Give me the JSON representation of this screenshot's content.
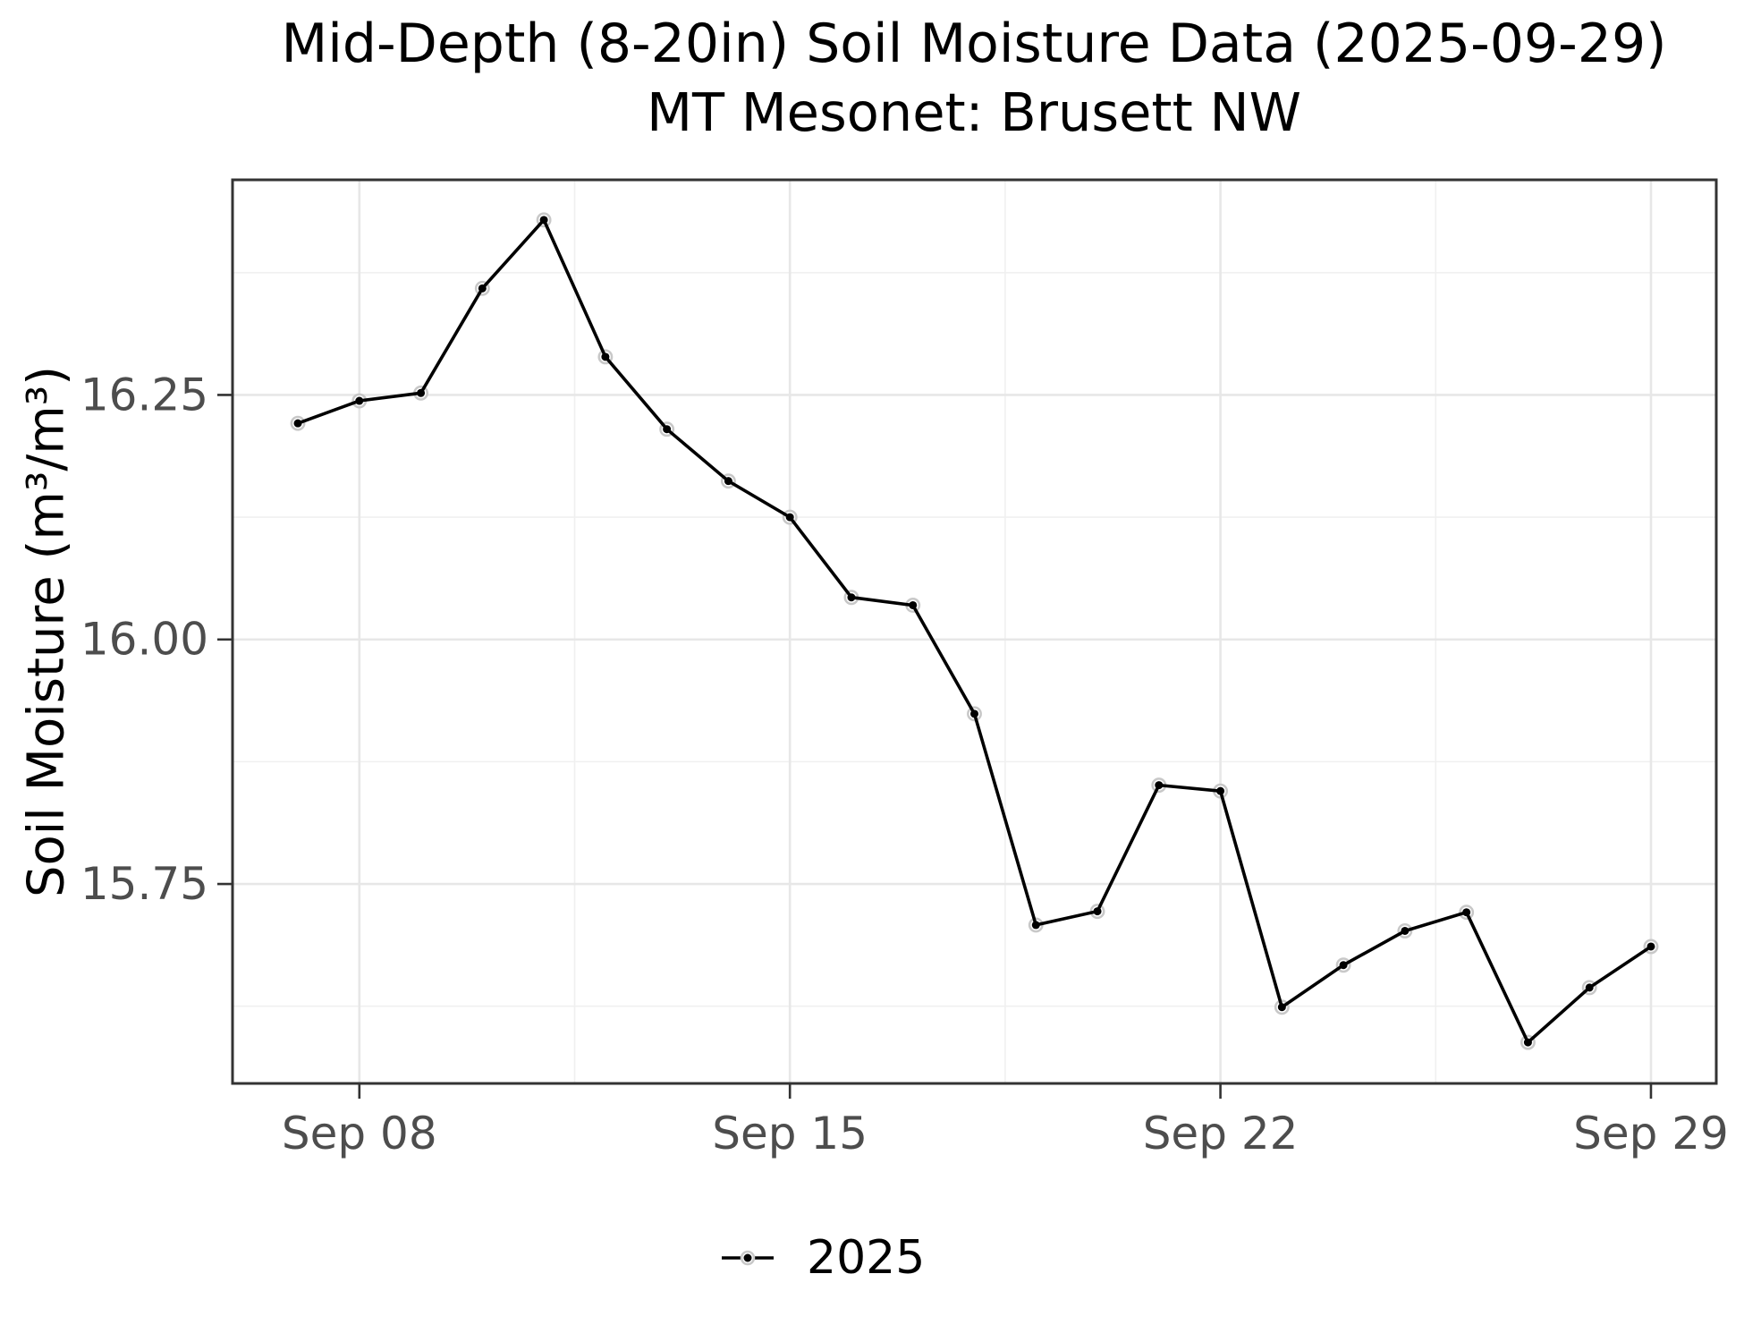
{
  "chart_data": {
    "type": "line",
    "title": "Mid-Depth (8-20in) Soil Moisture Data (2025-09-29)",
    "subtitle": "MT Mesonet: Brusett NW",
    "xlabel": "",
    "ylabel": "Soil Moisture (m³/m³)",
    "grid": "major+minor",
    "legend": {
      "position": "bottom",
      "entries": [
        {
          "label": "2025",
          "color": "#000000"
        }
      ]
    },
    "x": [
      "Sep 07",
      "Sep 08",
      "Sep 09",
      "Sep 10",
      "Sep 11",
      "Sep 12",
      "Sep 13",
      "Sep 14",
      "Sep 15",
      "Sep 16",
      "Sep 17",
      "Sep 18",
      "Sep 19",
      "Sep 20",
      "Sep 21",
      "Sep 22",
      "Sep 23",
      "Sep 24",
      "Sep 25",
      "Sep 26",
      "Sep 27",
      "Sep 28",
      "Sep 29"
    ],
    "x_days": [
      7,
      8,
      9,
      10,
      11,
      12,
      13,
      14,
      15,
      16,
      17,
      18,
      19,
      20,
      21,
      22,
      23,
      24,
      25,
      26,
      27,
      28,
      29
    ],
    "series": [
      {
        "name": "2025",
        "color": "#000000",
        "values": [
          16.221,
          16.244,
          16.252,
          16.359,
          16.429,
          16.289,
          16.215,
          16.162,
          16.125,
          16.043,
          16.035,
          15.924,
          15.708,
          15.722,
          15.851,
          15.845,
          15.624,
          15.667,
          15.702,
          15.721,
          15.588,
          15.644,
          15.686
        ]
      }
    ],
    "axes": {
      "x_major_ticks": [
        {
          "label": "Sep 08",
          "day": 8
        },
        {
          "label": "Sep 15",
          "day": 15
        },
        {
          "label": "Sep 22",
          "day": 22
        },
        {
          "label": "Sep 29",
          "day": 29
        }
      ],
      "x_minor_days": [
        11.5,
        18.5,
        25.5
      ],
      "y_major_ticks": [
        {
          "label": "16.25",
          "value": 16.25
        },
        {
          "label": "16.00",
          "value": 16.0
        },
        {
          "label": "15.75",
          "value": 15.75
        }
      ],
      "y_minor_values": [
        16.375,
        16.125,
        15.875,
        15.625
      ],
      "xlim_days": [
        5.938,
        30.062
      ],
      "ylim": [
        15.546,
        16.47
      ]
    },
    "colors": {
      "line": "#000000",
      "point": "#000000",
      "point_halo": "#c8c8c8",
      "grid_major": "#e7e7e7",
      "grid_minor": "#f0f0f0",
      "panel_border": "#333333",
      "tick_mark": "#333333",
      "tick_label": "#4d4d4d",
      "background": "#ffffff"
    }
  }
}
